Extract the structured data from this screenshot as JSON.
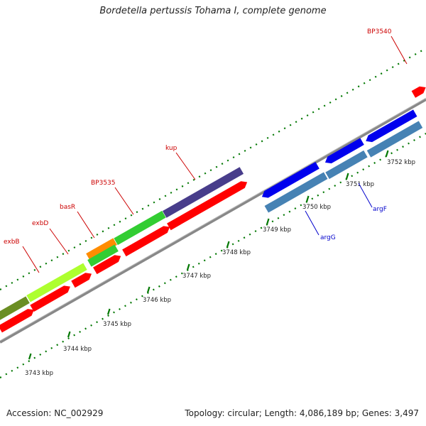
{
  "title": "Bordetella pertussis Tohama I, complete genome",
  "footer": {
    "accession": "Accession: NC_002929",
    "summary": "Topology: circular; Length: 4,086,189 bp; Genes: 3,497"
  },
  "colors": {
    "forward_orf": "#ff0000",
    "reverse_orf": "#0000ee",
    "steelblue_orf": "#4682b4",
    "backbone": "#888888",
    "ticks": "#007700",
    "forward_label": "#cc0000",
    "reverse_label": "#0000cc"
  },
  "scale": {
    "labels": [
      "3743 kbp",
      "3744 kbp",
      "3745 kbp",
      "3746 kbp",
      "3747 kbp",
      "3748 kbp",
      "3749 kbp",
      "3750 kbp",
      "3751 kbp",
      "3752 kbp"
    ]
  },
  "gene_labels": [
    {
      "id": "exbB",
      "text": "exbB",
      "strand": "forward"
    },
    {
      "id": "exbD",
      "text": "exbD",
      "strand": "forward"
    },
    {
      "id": "basR",
      "text": "basR",
      "strand": "forward"
    },
    {
      "id": "BP3535",
      "text": "BP3535",
      "strand": "forward"
    },
    {
      "id": "kup",
      "text": "kup",
      "strand": "forward"
    },
    {
      "id": "BP3540",
      "text": "BP3540",
      "strand": "forward"
    },
    {
      "id": "argG",
      "text": "argG",
      "strand": "reverse"
    },
    {
      "id": "argF",
      "text": "argF",
      "strand": "reverse"
    }
  ]
}
